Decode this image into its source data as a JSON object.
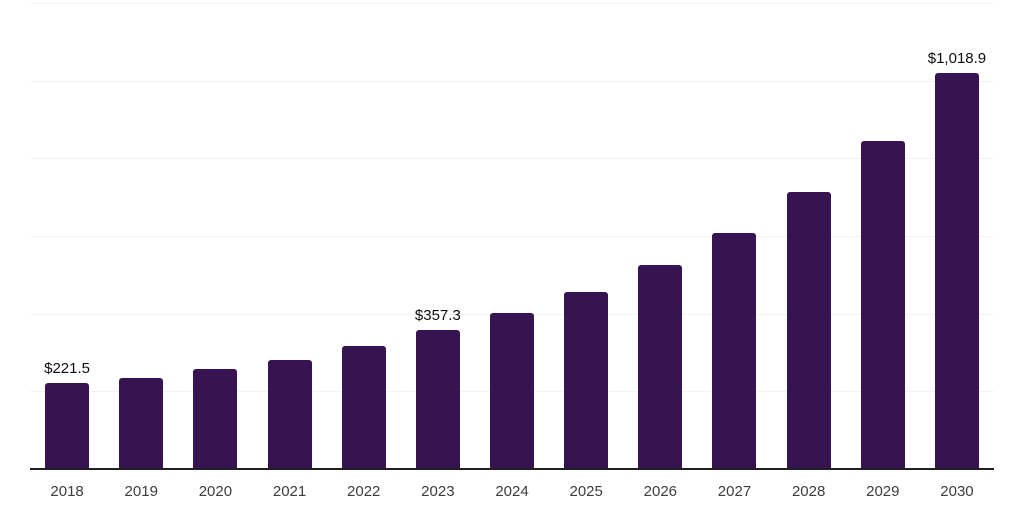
{
  "chart_data": {
    "type": "bar",
    "title": "",
    "xlabel": "",
    "ylabel": "",
    "categories": [
      "2018",
      "2019",
      "2020",
      "2021",
      "2022",
      "2023",
      "2024",
      "2025",
      "2026",
      "2027",
      "2028",
      "2029",
      "2030"
    ],
    "values": [
      221.5,
      235,
      257,
      282,
      317,
      357.3,
      403,
      457,
      525,
      608,
      714,
      845,
      1018.9
    ],
    "data_labels": [
      "$221.5",
      null,
      null,
      null,
      null,
      "$357.3",
      null,
      null,
      null,
      null,
      null,
      null,
      "$1,018.9"
    ],
    "ylim": [
      0,
      1200
    ],
    "grid_step": 200,
    "grid": true,
    "legend_position": "none",
    "bar_color": "#371352",
    "axis_color": "#1f1f1f",
    "gridline_color": "#f2f2f2",
    "value_label_color": "#0d0d0d",
    "tick_label_color": "#3d3d3d",
    "background_color": "#ffffff"
  }
}
